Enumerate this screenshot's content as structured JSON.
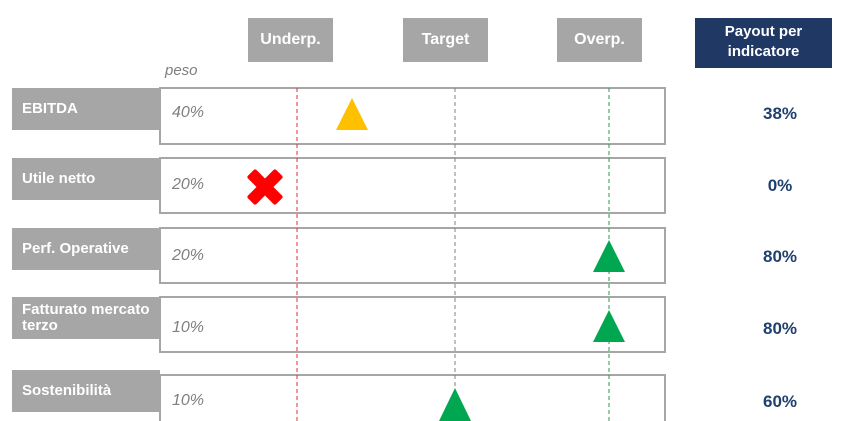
{
  "header": {
    "columns": [
      "Underp.",
      "Target",
      "Overp."
    ],
    "payout_title": "Payout per indicatore",
    "weight_label": "peso"
  },
  "rows": [
    {
      "label": "EBITDA",
      "weight": "40%",
      "payout": "38%"
    },
    {
      "label": "Utile netto",
      "weight": "20%",
      "payout": "0%"
    },
    {
      "label": "Perf. Operative",
      "weight": "20%",
      "payout": "80%"
    },
    {
      "label": "Fatturato mercato terzo",
      "weight": "10%",
      "payout": "80%"
    },
    {
      "label": "Sostenibilità",
      "weight": "10%",
      "payout": "60%"
    }
  ]
}
